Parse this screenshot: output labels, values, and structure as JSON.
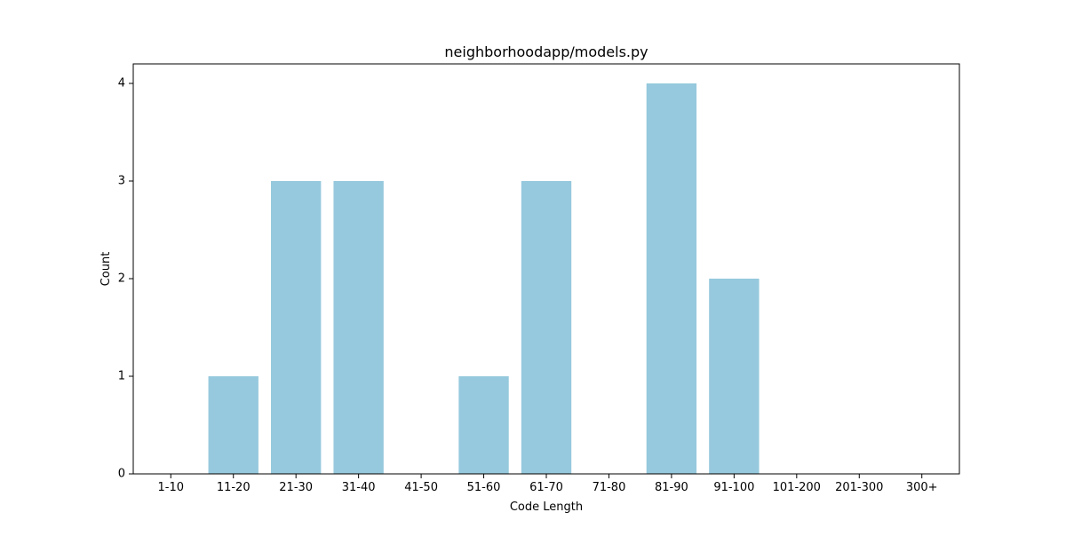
{
  "chart_data": {
    "type": "bar",
    "title": "neighborhoodapp/models.py",
    "xlabel": "Code Length",
    "ylabel": "Count",
    "categories": [
      "1-10",
      "11-20",
      "21-30",
      "31-40",
      "41-50",
      "51-60",
      "61-70",
      "71-80",
      "81-90",
      "91-100",
      "101-200",
      "201-300",
      "300+"
    ],
    "values": [
      0,
      1,
      3,
      3,
      0,
      1,
      3,
      0,
      4,
      2,
      0,
      0,
      0
    ],
    "ylim": [
      0,
      4.2
    ],
    "yticks": [
      0,
      1,
      2,
      3,
      4
    ],
    "grid": false,
    "legend": "none",
    "bar_color": "#96c9dd",
    "axis_color": "#000000"
  }
}
